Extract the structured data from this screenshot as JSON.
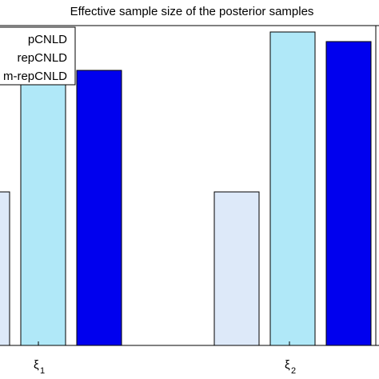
{
  "chart_data": {
    "type": "bar",
    "title": "Effective sample size of the posterior samples",
    "categories": [
      {
        "symbol": "ξ",
        "subscript": "1"
      },
      {
        "symbol": "ξ",
        "subscript": "2"
      }
    ],
    "series": [
      {
        "name": "pCNLD",
        "legend_text": "pCNLD",
        "color": "#dde9f9",
        "values": [
          0.48,
          0.48
        ]
      },
      {
        "name": "repCNLD",
        "legend_text": "repCNLD",
        "color": "#b0e8f8",
        "values": [
          0.88,
          0.98
        ]
      },
      {
        "name": "m-repCNLD",
        "legend_text": "m-repCNLD",
        "color": "#0000ee",
        "values": [
          0.86,
          0.95
        ]
      }
    ],
    "ylim": [
      0,
      1.0
    ],
    "grid": false,
    "legend": "top-left"
  }
}
